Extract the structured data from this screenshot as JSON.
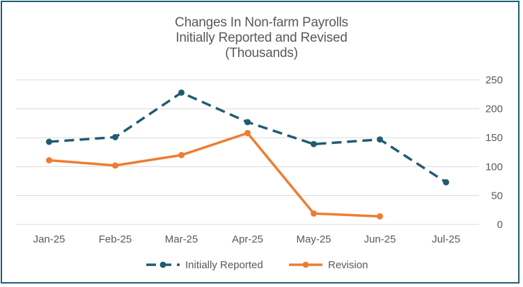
{
  "chart_data": {
    "type": "line",
    "title_lines": [
      "Changes In Non-farm Payrolls",
      "Initially Reported and Revised",
      "(Thousands)"
    ],
    "categories": [
      "Jan-25",
      "Feb-25",
      "Mar-25",
      "Apr-25",
      "May-25",
      "Jun-25",
      "Jul-25"
    ],
    "ylim": [
      0,
      250
    ],
    "yticks": [
      0,
      50,
      100,
      150,
      200,
      250
    ],
    "axis_side": "right",
    "grid": true,
    "legend_position": "bottom",
    "series": [
      {
        "name": "Initially Reported",
        "color": "#1f5c73",
        "style": "dashed",
        "values": [
          143,
          151,
          228,
          177,
          139,
          147,
          73
        ]
      },
      {
        "name": "Revision",
        "color": "#ed7d31",
        "style": "solid",
        "values": [
          111,
          102,
          120,
          158,
          19,
          14,
          null
        ]
      }
    ]
  }
}
